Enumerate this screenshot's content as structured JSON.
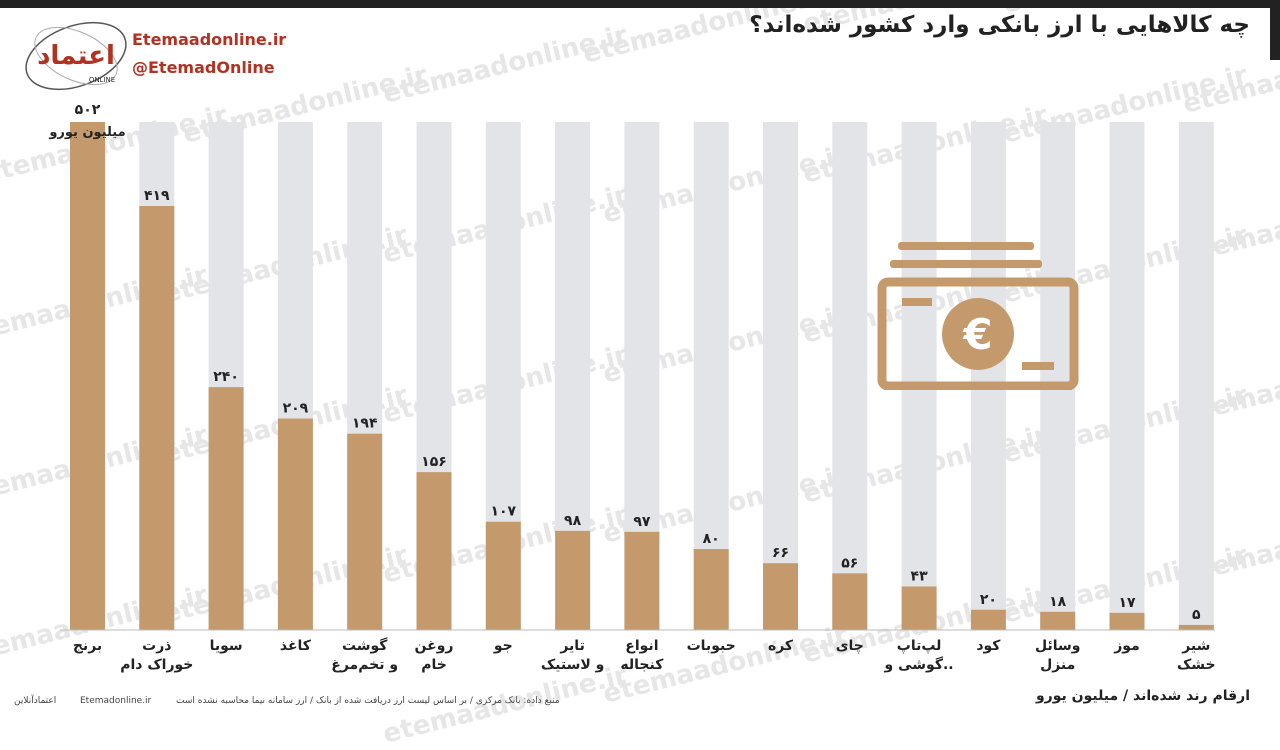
{
  "header": {
    "title": "چه کالاهایی با ارز بانکی وارد کشور شده‌اند؟",
    "website": "Etemaadonline.ir",
    "handle": "@EtemadOnline",
    "logo_text": "اعتماد",
    "logo_subtext": "ONLINE"
  },
  "watermark_text": "etemaadonline.ir",
  "chart_data": {
    "type": "bar",
    "categories": [
      "برنج",
      "ذرت خوراک دام",
      "سویا",
      "کاغذ",
      "گوشت و تخم‌مرغ",
      "روغن خام",
      "جو",
      "تایر و لاستیک",
      "انواع کنجاله",
      "حبوبات",
      "کره",
      "چای",
      "لپ‌تاپ گوشی و..",
      "کود",
      "وسائل منزل",
      "موز",
      "شیر خشک"
    ],
    "category_lines": [
      [
        "برنج"
      ],
      [
        "ذرت",
        "خوراک دام"
      ],
      [
        "سویا"
      ],
      [
        "کاغذ"
      ],
      [
        "گوشت",
        "و تخم‌مرغ"
      ],
      [
        "روغن",
        "خام"
      ],
      [
        "جو"
      ],
      [
        "تایر",
        "و لاستیک"
      ],
      [
        "انواع",
        "کنجاله"
      ],
      [
        "حبوبات"
      ],
      [
        "کره"
      ],
      [
        "چای"
      ],
      [
        "لپ‌تاپ",
        "گوشی و.."
      ],
      [
        "کود"
      ],
      [
        "وسائل",
        "منزل"
      ],
      [
        "موز"
      ],
      [
        "شیر",
        "خشک"
      ]
    ],
    "values": [
      502,
      419,
      240,
      209,
      194,
      156,
      107,
      98,
      97,
      80,
      66,
      56,
      43,
      20,
      18,
      17,
      5
    ],
    "value_labels": [
      "۵۰۲",
      "۴۱۹",
      "۲۴۰",
      "۲۰۹",
      "۱۹۴",
      "۱۵۶",
      "۱۰۷",
      "۹۸",
      "۹۷",
      "۸۰",
      "۶۶",
      "۵۶",
      "۴۳",
      "۲۰",
      "۱۸",
      "۱۷",
      "۵"
    ],
    "first_value_unit": "میلیون یورو",
    "ylim": [
      0,
      502
    ],
    "title": "چه کالاهایی با ارز بانکی وارد کشور شده‌اند؟",
    "ylabel": "",
    "xlabel": "",
    "colors": {
      "bar": "#c49a6c",
      "track": "#e3e4e8",
      "text": "#222222"
    }
  },
  "footer": {
    "note": "ارقام رند شده‌اند / میلیون یورو",
    "source": "منبع داده: بانک مرکزی / بر اساس لیست ارز دریافت شده از بانک / ارز سامانه نیما محاسبه نشده است",
    "site": "Etemadonline.ir",
    "brand": "اعتمادآنلاین"
  },
  "icon": {
    "name": "euro-banknote-icon",
    "symbol": "€",
    "color": "#c49a6c"
  }
}
